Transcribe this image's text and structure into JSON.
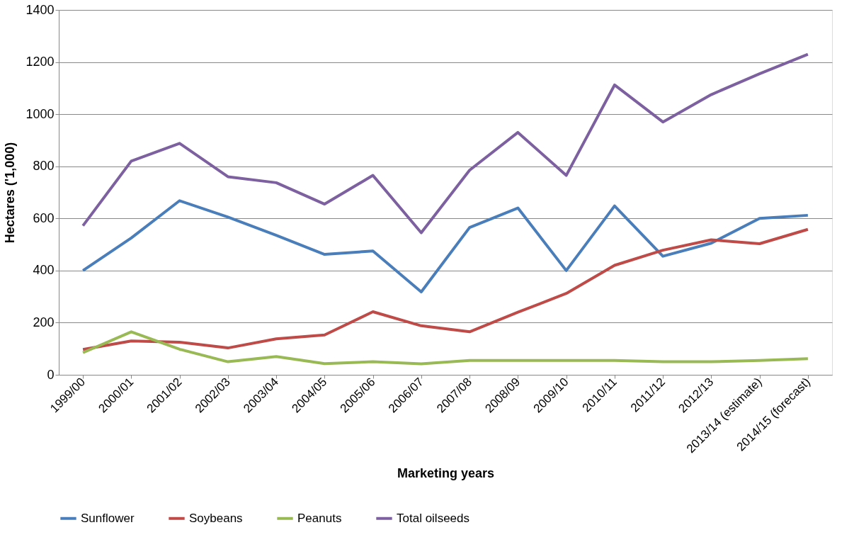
{
  "chart_data": {
    "type": "line",
    "xlabel": "Marketing years",
    "ylabel": "Hectares ('1,000)",
    "categories": [
      "1999/00",
      "2000/01",
      "2001/02",
      "2002/03",
      "2003/04",
      "2004/05",
      "2005/06",
      "2006/07",
      "2007/08",
      "2008/09",
      "2009/10",
      "2010/11",
      "2011/12",
      "2012/13",
      "2013/14 (estimate)",
      "2014/15 (forecast)"
    ],
    "series": [
      {
        "name": "Sunflower",
        "color": "#4a7ebb",
        "values": [
          400,
          525,
          668,
          605,
          535,
          462,
          475,
          318,
          565,
          640,
          400,
          648,
          455,
          505,
          600,
          612
        ]
      },
      {
        "name": "Soybeans",
        "color": "#be4b48",
        "values": [
          97,
          130,
          125,
          103,
          138,
          153,
          242,
          188,
          165,
          240,
          312,
          420,
          478,
          518,
          503,
          558
        ]
      },
      {
        "name": "Peanuts",
        "color": "#98b954",
        "values": [
          85,
          165,
          98,
          50,
          70,
          43,
          50,
          42,
          55,
          55,
          55,
          55,
          50,
          50,
          55,
          62
        ]
      },
      {
        "name": "Total oilseeds",
        "color": "#7d60a0",
        "values": [
          572,
          820,
          888,
          760,
          737,
          655,
          765,
          545,
          785,
          930,
          765,
          1112,
          970,
          1075,
          1155,
          1230
        ]
      }
    ],
    "ylim": [
      0,
      1400
    ],
    "yticks": [
      0,
      200,
      400,
      600,
      800,
      1000,
      1200,
      1400
    ],
    "grid": "y",
    "legend": "bottom",
    "marker": "none",
    "line_style": "solid"
  }
}
